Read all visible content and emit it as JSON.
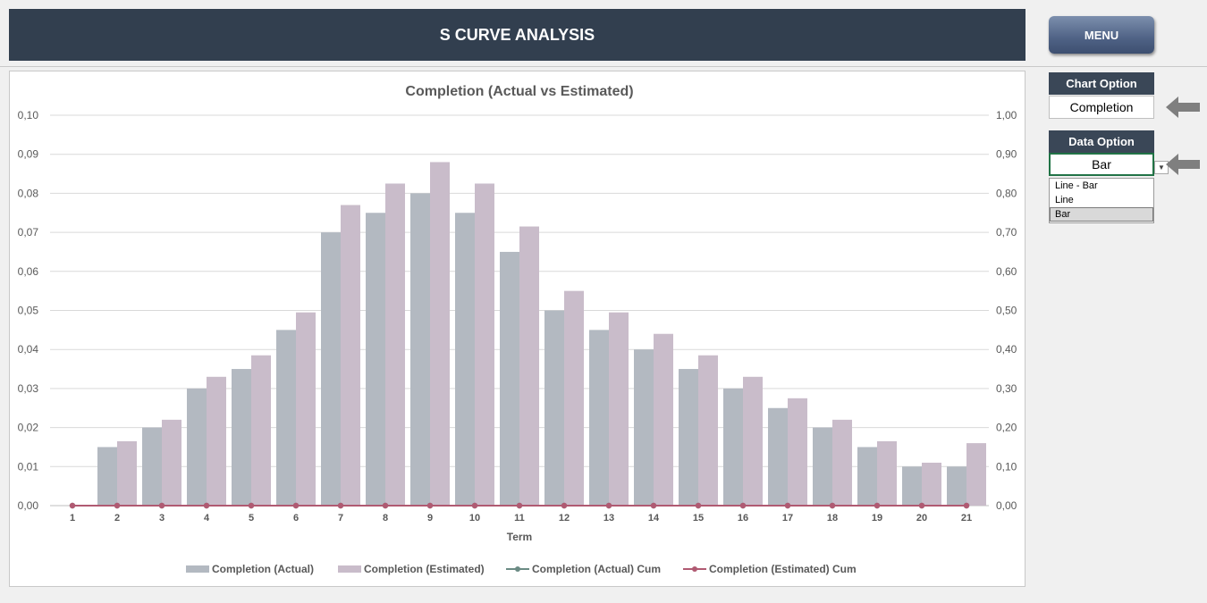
{
  "header": {
    "title": "S CURVE ANALYSIS"
  },
  "menu": {
    "label": "MENU"
  },
  "chart_option": {
    "title": "Chart Option",
    "value": "Completion"
  },
  "data_option": {
    "title": "Data Option",
    "value": "Bar",
    "options": [
      "Line - Bar",
      "Line",
      "Bar"
    ]
  },
  "colors": {
    "header": "#323f4f",
    "actual": "#b3b9c1",
    "estimated": "#c9bcca",
    "actual_cum": "#6b8b84",
    "estimated_cum": "#b05a72"
  },
  "chart_data": {
    "type": "bar",
    "title": "Completion (Actual vs Estimated)",
    "xlabel": "Term",
    "ylabel": "",
    "categories": [
      "1",
      "2",
      "3",
      "4",
      "5",
      "6",
      "7",
      "8",
      "9",
      "10",
      "11",
      "12",
      "13",
      "14",
      "15",
      "16",
      "17",
      "18",
      "19",
      "20",
      "21"
    ],
    "ylim": [
      0,
      0.1
    ],
    "y2lim": [
      0,
      1.0
    ],
    "y_ticks": [
      "0,00",
      "0,01",
      "0,02",
      "0,03",
      "0,04",
      "0,05",
      "0,06",
      "0,07",
      "0,08",
      "0,09",
      "0,10"
    ],
    "y2_ticks": [
      "0,00",
      "0,10",
      "0,20",
      "0,30",
      "0,40",
      "0,50",
      "0,60",
      "0,70",
      "0,80",
      "0,90",
      "1,00"
    ],
    "grid": true,
    "legend": "bottom",
    "series": [
      {
        "name": "Completion (Actual)",
        "type": "bar",
        "values": [
          0,
          0.015,
          0.02,
          0.03,
          0.035,
          0.045,
          0.07,
          0.075,
          0.08,
          0.075,
          0.065,
          0.05,
          0.045,
          0.04,
          0.035,
          0.03,
          0.025,
          0.02,
          0.015,
          0.01,
          0.01
        ]
      },
      {
        "name": "Completion (Estimated)",
        "type": "bar",
        "values": [
          0,
          0.0165,
          0.022,
          0.033,
          0.0385,
          0.0495,
          0.077,
          0.0825,
          0.088,
          0.0825,
          0.0715,
          0.055,
          0.0495,
          0.044,
          0.0385,
          0.033,
          0.0275,
          0.022,
          0.0165,
          0.011,
          0.016
        ]
      },
      {
        "name": "Completion (Actual) Cum",
        "type": "line",
        "values": [
          0,
          0,
          0,
          0,
          0,
          0,
          0,
          0,
          0,
          0,
          0,
          0,
          0,
          0,
          0,
          0,
          0,
          0,
          0,
          0,
          0
        ]
      },
      {
        "name": "Completion (Estimated) Cum",
        "type": "line",
        "values": [
          0,
          0,
          0,
          0,
          0,
          0,
          0,
          0,
          0,
          0,
          0,
          0,
          0,
          0,
          0,
          0,
          0,
          0,
          0,
          0,
          0
        ]
      }
    ]
  }
}
